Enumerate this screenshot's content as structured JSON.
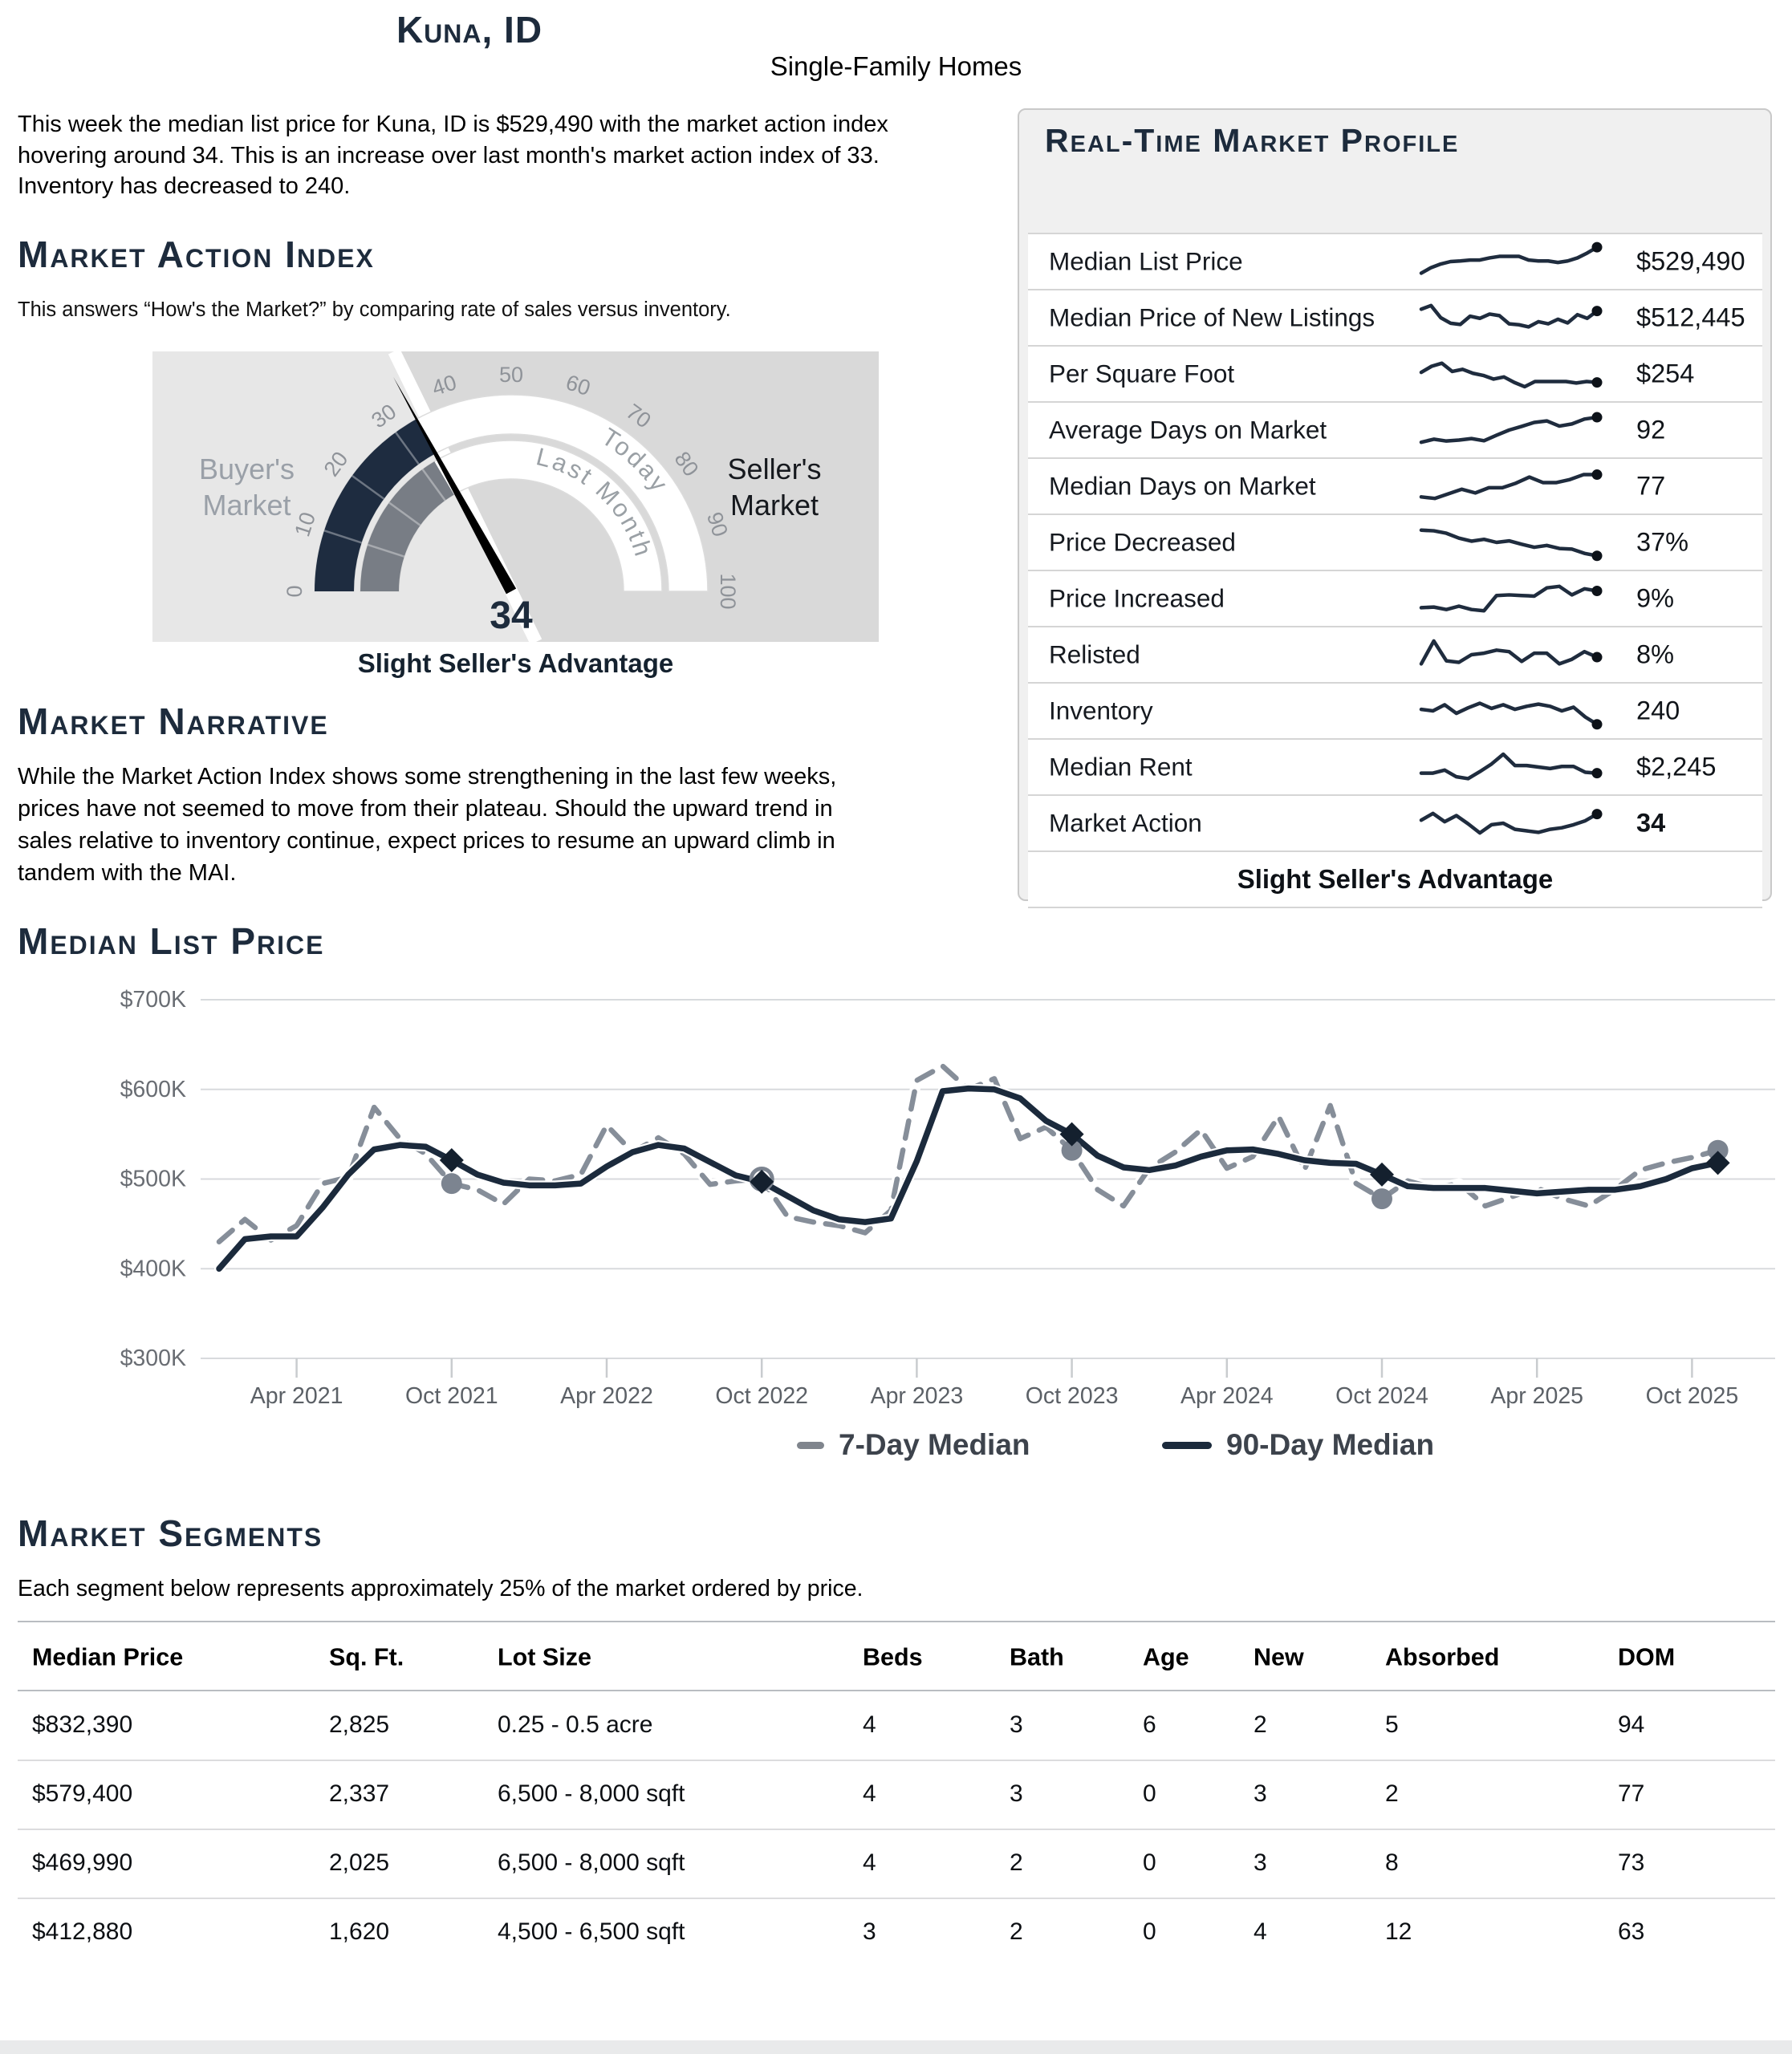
{
  "header": {
    "title": "Kuna, ID",
    "subtitle": "Single-Family Homes"
  },
  "intro": "This week the median list price for Kuna, ID is $529,490 with the market action index hovering around 34. This is an increase over last month's market action index of 33. Inventory has decreased to 240.",
  "sections": {
    "market_action_index": "Market Action Index",
    "market_narrative": "Market Narrative",
    "median_list_price": "Median List Price",
    "market_segments": "Market Segments"
  },
  "market_action": {
    "subtitle": "This answers “How's the Market?” by comparing rate of sales versus inventory.",
    "buyers_label": "Buyer's Market",
    "sellers_label": "Seller's Market",
    "caption": "Slight Seller's Advantage"
  },
  "narrative": "While the Market Action Index shows some strengthening in the last few weeks, prices have not seemed to move from their plateau. Should the upward trend in sales relative to inventory continue, expect prices to resume an upward climb in tandem with the MAI.",
  "profile": {
    "title": "Real-Time Market Profile",
    "footer": "Slight Seller's Advantage",
    "rows": [
      {
        "label": "Median List Price",
        "value": "$529,490",
        "bold": false,
        "spark": [
          0.12,
          0.3,
          0.42,
          0.5,
          0.52,
          0.55,
          0.55,
          0.62,
          0.67,
          0.67,
          0.67,
          0.55,
          0.52,
          0.52,
          0.47,
          0.52,
          0.62,
          0.78,
          0.97
        ]
      },
      {
        "label": "Median Price of New Listings",
        "value": "$512,445",
        "bold": false,
        "spark": [
          0.78,
          0.9,
          0.5,
          0.32,
          0.28,
          0.55,
          0.48,
          0.62,
          0.57,
          0.3,
          0.27,
          0.2,
          0.37,
          0.3,
          0.45,
          0.33,
          0.6,
          0.48,
          0.72
        ]
      },
      {
        "label": "Per Square Foot",
        "value": "$254",
        "bold": false,
        "spark": [
          0.55,
          0.75,
          0.85,
          0.58,
          0.65,
          0.52,
          0.45,
          0.33,
          0.4,
          0.22,
          0.08,
          0.25,
          0.25,
          0.25,
          0.25,
          0.2,
          0.25,
          0.22
        ]
      },
      {
        "label": "Average Days on Market",
        "value": "92",
        "bold": false,
        "spark": [
          0.1,
          0.2,
          0.14,
          0.17,
          0.22,
          0.15,
          0.33,
          0.5,
          0.62,
          0.75,
          0.8,
          0.63,
          0.7,
          0.86,
          0.92
        ]
      },
      {
        "label": "Median Days on Market",
        "value": "77",
        "bold": false,
        "spark": [
          0.15,
          0.1,
          0.25,
          0.4,
          0.28,
          0.45,
          0.45,
          0.6,
          0.8,
          0.62,
          0.62,
          0.72,
          0.88,
          0.88
        ]
      },
      {
        "label": "Price Decreased",
        "value": "37%",
        "bold": false,
        "spark": [
          0.9,
          0.88,
          0.8,
          0.64,
          0.54,
          0.6,
          0.5,
          0.55,
          0.44,
          0.34,
          0.4,
          0.3,
          0.28,
          0.14,
          0.06
        ]
      },
      {
        "label": "Price Increased",
        "value": "9%",
        "bold": false,
        "spark": [
          0.2,
          0.22,
          0.14,
          0.25,
          0.14,
          0.1,
          0.6,
          0.62,
          0.6,
          0.58,
          0.85,
          0.9,
          0.62,
          0.82,
          0.75
        ]
      },
      {
        "label": "Relisted",
        "value": "8%",
        "bold": false,
        "spark": [
          0.2,
          0.95,
          0.3,
          0.25,
          0.5,
          0.55,
          0.65,
          0.6,
          0.28,
          0.55,
          0.55,
          0.2,
          0.35,
          0.6,
          0.42
        ]
      },
      {
        "label": "Inventory",
        "value": "240",
        "bold": false,
        "spark": [
          0.55,
          0.5,
          0.7,
          0.42,
          0.6,
          0.75,
          0.58,
          0.7,
          0.55,
          0.65,
          0.72,
          0.65,
          0.5,
          0.62,
          0.3,
          0.06
        ]
      },
      {
        "label": "Median Rent",
        "value": "$2,245",
        "bold": false,
        "spark": [
          0.3,
          0.3,
          0.4,
          0.18,
          0.12,
          0.35,
          0.6,
          0.92,
          0.55,
          0.55,
          0.5,
          0.45,
          0.52,
          0.52,
          0.33,
          0.3
        ]
      },
      {
        "label": "Market Action",
        "value": "34",
        "bold": true,
        "spark": [
          0.6,
          0.82,
          0.55,
          0.75,
          0.48,
          0.18,
          0.45,
          0.5,
          0.3,
          0.25,
          0.2,
          0.3,
          0.35,
          0.45,
          0.58,
          0.8
        ]
      }
    ]
  },
  "legend": {
    "s7": "7-Day Median",
    "s90": "90-Day Median"
  },
  "segments": {
    "intro": "Each segment below represents approximately 25% of the market ordered by price.",
    "headers": [
      "Median Price",
      "Sq. Ft.",
      "Lot Size",
      "Beds",
      "Bath",
      "Age",
      "New",
      "Absorbed",
      "DOM"
    ],
    "rows": [
      [
        "$832,390",
        "2,825",
        "0.25 - 0.5 acre",
        "4",
        "3",
        "6",
        "2",
        "5",
        "94"
      ],
      [
        "$579,400",
        "2,337",
        "6,500 - 8,000 sqft",
        "4",
        "3",
        "0",
        "3",
        "2",
        "77"
      ],
      [
        "$469,990",
        "2,025",
        "6,500 - 8,000 sqft",
        "4",
        "2",
        "0",
        "3",
        "8",
        "73"
      ],
      [
        "$412,880",
        "1,620",
        "4,500 - 6,500 sqft",
        "3",
        "2",
        "0",
        "4",
        "12",
        "63"
      ]
    ]
  },
  "chart_data": [
    {
      "type": "line",
      "title": "Median List Price",
      "x_start": "2021-01",
      "x_step_months": 1,
      "ylabel_ticks": [
        "$700K",
        "$600K",
        "$500K",
        "$400K",
        "$300K"
      ],
      "ylim": [
        300,
        700
      ],
      "xticks": [
        {
          "label": "Apr 2021",
          "i": 3
        },
        {
          "label": "Oct 2021",
          "i": 9
        },
        {
          "label": "Apr 2022",
          "i": 15
        },
        {
          "label": "Oct 2022",
          "i": 21
        },
        {
          "label": "Apr 2023",
          "i": 27
        },
        {
          "label": "Oct 2023",
          "i": 33
        },
        {
          "label": "Apr 2024",
          "i": 39
        },
        {
          "label": "Oct 2024",
          "i": 45
        },
        {
          "label": "Apr 2025",
          "i": 51
        },
        {
          "label": "Oct 2025",
          "i": 57
        }
      ],
      "series": [
        {
          "name": "7-Day Median",
          "values": [
            430,
            455,
            432,
            448,
            495,
            502,
            580,
            545,
            528,
            495,
            488,
            472,
            500,
            498,
            505,
            560,
            530,
            546,
            528,
            494,
            498,
            500,
            458,
            452,
            448,
            440,
            465,
            610,
            626,
            600,
            612,
            545,
            558,
            532,
            488,
            470,
            512,
            530,
            555,
            512,
            525,
            570,
            510,
            582,
            495,
            478,
            498,
            490,
            495,
            470,
            480,
            490,
            478,
            470,
            488,
            510,
            518,
            524,
            532
          ]
        },
        {
          "name": "90-Day Median",
          "values": [
            400,
            433,
            436,
            436,
            468,
            505,
            533,
            538,
            536,
            521,
            505,
            496,
            493,
            493,
            495,
            514,
            530,
            538,
            534,
            519,
            504,
            497,
            481,
            465,
            455,
            452,
            456,
            520,
            598,
            601,
            600,
            590,
            565,
            550,
            526,
            513,
            510,
            515,
            525,
            532,
            533,
            528,
            521,
            518,
            517,
            505,
            492,
            490,
            490,
            490,
            487,
            484,
            486,
            488,
            488,
            492,
            500,
            512,
            518
          ]
        }
      ],
      "marker_indices": [
        9,
        21,
        33,
        45,
        58
      ],
      "ring_marker_index": 21
    },
    {
      "type": "gauge",
      "title": "Market Action Index",
      "value": 34,
      "last_month": 33,
      "min": 0,
      "max": 100,
      "tick_step": 10,
      "ring_labels": {
        "inner": "Last Month",
        "outer": "Today"
      },
      "value_label": "34",
      "caption": "Slight Seller's Advantage"
    }
  ]
}
